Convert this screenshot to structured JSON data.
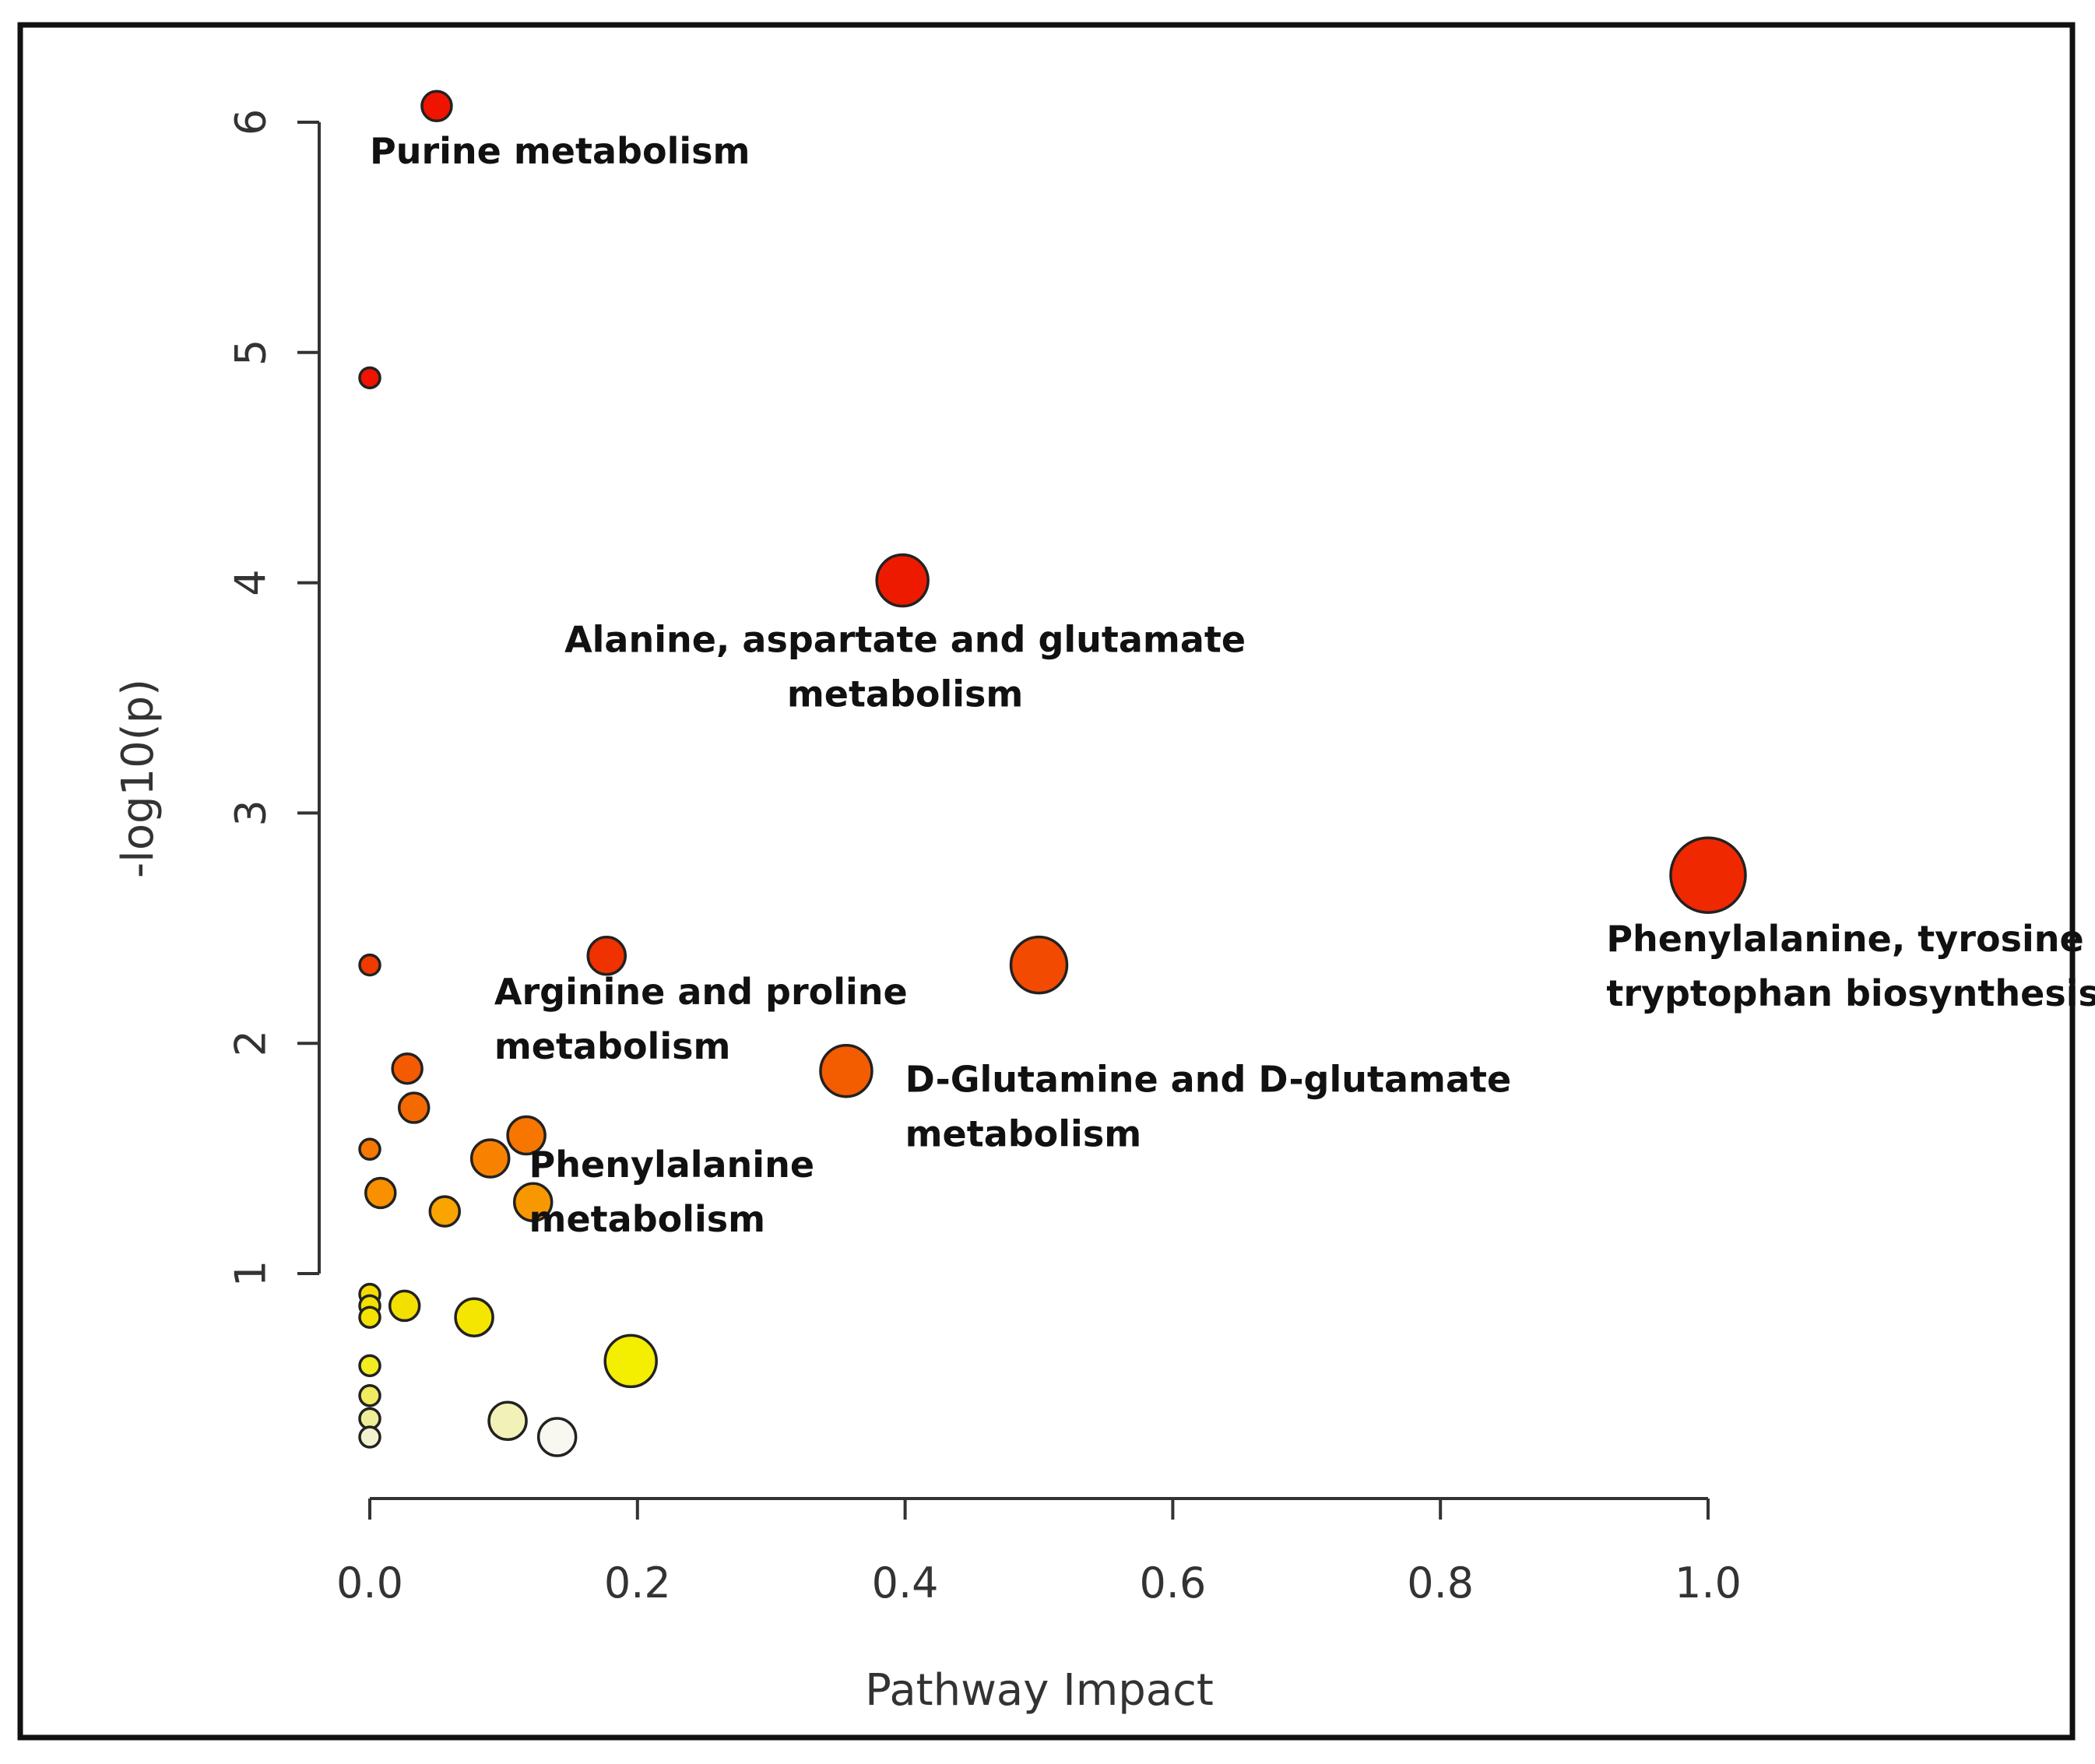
{
  "chart_data": {
    "type": "scatter",
    "title": "",
    "xlabel": "Pathway Impact",
    "ylabel": "-log10(p)",
    "xlim": [
      0.0,
      1.0
    ],
    "ylim": [
      0.2,
      6.2
    ],
    "xticks": [
      "0.0",
      "0.2",
      "0.4",
      "0.6",
      "0.8",
      "1.0"
    ],
    "yticks": [
      "1",
      "2",
      "3",
      "4",
      "5",
      "6"
    ],
    "grid": false,
    "legend": "none",
    "points": [
      {
        "x": 0.05,
        "y": 6.07,
        "size": 2,
        "color": "#ee1400"
      },
      {
        "x": 0.0,
        "y": 4.89,
        "size": 1,
        "color": "#ee1400"
      },
      {
        "x": 0.398,
        "y": 4.01,
        "size": 4,
        "color": "#ee1a00"
      },
      {
        "x": 1.0,
        "y": 2.73,
        "size": 6,
        "color": "#f02800"
      },
      {
        "x": 0.0,
        "y": 2.34,
        "size": 1,
        "color": "#f03a00"
      },
      {
        "x": 0.177,
        "y": 2.38,
        "size": 3,
        "color": "#f03200"
      },
      {
        "x": 0.5,
        "y": 2.34,
        "size": 5,
        "color": "#f24a00"
      },
      {
        "x": 0.028,
        "y": 1.89,
        "size": 2,
        "color": "#f45a00"
      },
      {
        "x": 0.356,
        "y": 1.88,
        "size": 4,
        "color": "#f45c00"
      },
      {
        "x": 0.033,
        "y": 1.72,
        "size": 2,
        "color": "#f46a00"
      },
      {
        "x": 0.0,
        "y": 1.54,
        "size": 1,
        "color": "#f67800"
      },
      {
        "x": 0.117,
        "y": 1.6,
        "size": 3,
        "color": "#f67600"
      },
      {
        "x": 0.09,
        "y": 1.5,
        "size": 3,
        "color": "#f88200"
      },
      {
        "x": 0.008,
        "y": 1.35,
        "size": 2,
        "color": "#f89000"
      },
      {
        "x": 0.122,
        "y": 1.31,
        "size": 3,
        "color": "#f89800"
      },
      {
        "x": 0.056,
        "y": 1.27,
        "size": 2,
        "color": "#faa400"
      },
      {
        "x": 0.0,
        "y": 0.91,
        "size": 1,
        "color": "#f4dc00"
      },
      {
        "x": 0.0,
        "y": 0.86,
        "size": 1,
        "color": "#f4e000"
      },
      {
        "x": 0.0,
        "y": 0.81,
        "size": 1,
        "color": "#f4e200"
      },
      {
        "x": 0.026,
        "y": 0.86,
        "size": 2,
        "color": "#f4e000"
      },
      {
        "x": 0.078,
        "y": 0.81,
        "size": 3,
        "color": "#f4e600"
      },
      {
        "x": 0.0,
        "y": 0.6,
        "size": 1,
        "color": "#f2ec20"
      },
      {
        "x": 0.195,
        "y": 0.62,
        "size": 4,
        "color": "#f4ee00"
      },
      {
        "x": 0.0,
        "y": 0.47,
        "size": 1,
        "color": "#f0ec60"
      },
      {
        "x": 0.0,
        "y": 0.37,
        "size": 1,
        "color": "#eeee98"
      },
      {
        "x": 0.103,
        "y": 0.36,
        "size": 3,
        "color": "#f2f2b8"
      },
      {
        "x": 0.0,
        "y": 0.29,
        "size": 1,
        "color": "#f2f2d0"
      },
      {
        "x": 0.14,
        "y": 0.29,
        "size": 3,
        "color": "#f8f8f0"
      }
    ],
    "annotations": [
      {
        "lines": [
          "Purine metabolism"
        ],
        "x": 0.0,
        "y": 5.82,
        "anchor": "start"
      },
      {
        "lines": [
          "Alanine, aspartate and glutamate",
          "metabolism"
        ],
        "x": 0.4,
        "y": 3.7,
        "anchor": "middle"
      },
      {
        "lines": [
          "Phenylalanine, tyrosine and",
          "tryptophan biosynthesis"
        ],
        "x": 0.924,
        "y": 2.4,
        "anchor": "start"
      },
      {
        "lines": [
          "Arginine and proline",
          "metabolism"
        ],
        "x": 0.093,
        "y": 2.17,
        "anchor": "start"
      },
      {
        "lines": [
          "D-Glutamine and D-glutamate",
          "metabolism"
        ],
        "x": 0.4,
        "y": 1.79,
        "anchor": "start"
      },
      {
        "lines": [
          "Phenylalanine",
          "metabolism"
        ],
        "x": 0.119,
        "y": 1.42,
        "anchor": "start"
      }
    ]
  }
}
